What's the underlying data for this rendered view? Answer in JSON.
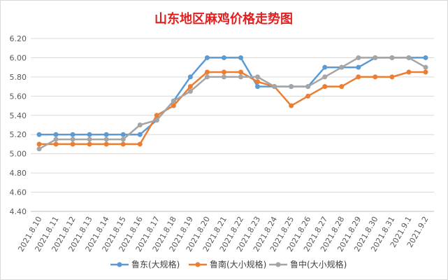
{
  "chart_data": {
    "type": "line",
    "title": "山东地区麻鸡价格走势图",
    "xlabel": "",
    "ylabel": "",
    "ylim": [
      4.4,
      6.2
    ],
    "yticks": [
      "4.40",
      "4.60",
      "4.80",
      "5.00",
      "5.20",
      "5.40",
      "5.60",
      "5.80",
      "6.00",
      "6.20"
    ],
    "categories": [
      "2021.8.10",
      "2021.8.11",
      "2021.8.12",
      "2021.8.13",
      "2021.8.14",
      "2021.8.15",
      "2021.8.16",
      "2021.8.17",
      "2021.8.18",
      "2021.8.19",
      "2021.8.20",
      "2021.8.21",
      "2021.8.22",
      "2021.8.23",
      "2021.8.24",
      "2021.8.25",
      "2021.8.26",
      "2021.8.27",
      "2021.8.28",
      "2021.8.29",
      "2021.8.30",
      "2021.8.31",
      "2021.9.1",
      "2021.9.2"
    ],
    "grid": true,
    "legend_position": "bottom",
    "series": [
      {
        "name": "鲁东(大规格)",
        "color": "#5b9bd5",
        "values": [
          5.2,
          5.2,
          5.2,
          5.2,
          5.2,
          5.2,
          5.2,
          5.35,
          5.55,
          5.8,
          6.0,
          6.0,
          6.0,
          5.7,
          5.7,
          5.7,
          5.7,
          5.9,
          5.9,
          5.9,
          6.0,
          6.0,
          6.0,
          6.0
        ]
      },
      {
        "name": "鲁南(大小规格)",
        "color": "#ed7d31",
        "values": [
          5.1,
          5.1,
          5.1,
          5.1,
          5.1,
          5.1,
          5.1,
          5.4,
          5.5,
          5.7,
          5.85,
          5.85,
          5.85,
          5.75,
          5.7,
          5.5,
          5.6,
          5.7,
          5.7,
          5.8,
          5.8,
          5.8,
          5.85,
          5.85
        ]
      },
      {
        "name": "鲁中(大小规格)",
        "color": "#a5a5a5",
        "values": [
          5.05,
          5.15,
          5.15,
          5.15,
          5.15,
          5.15,
          5.3,
          5.35,
          5.55,
          5.65,
          5.8,
          5.8,
          5.8,
          5.8,
          5.7,
          5.7,
          5.7,
          5.8,
          5.9,
          6.0,
          6.0,
          6.0,
          6.0,
          5.9
        ]
      }
    ]
  }
}
